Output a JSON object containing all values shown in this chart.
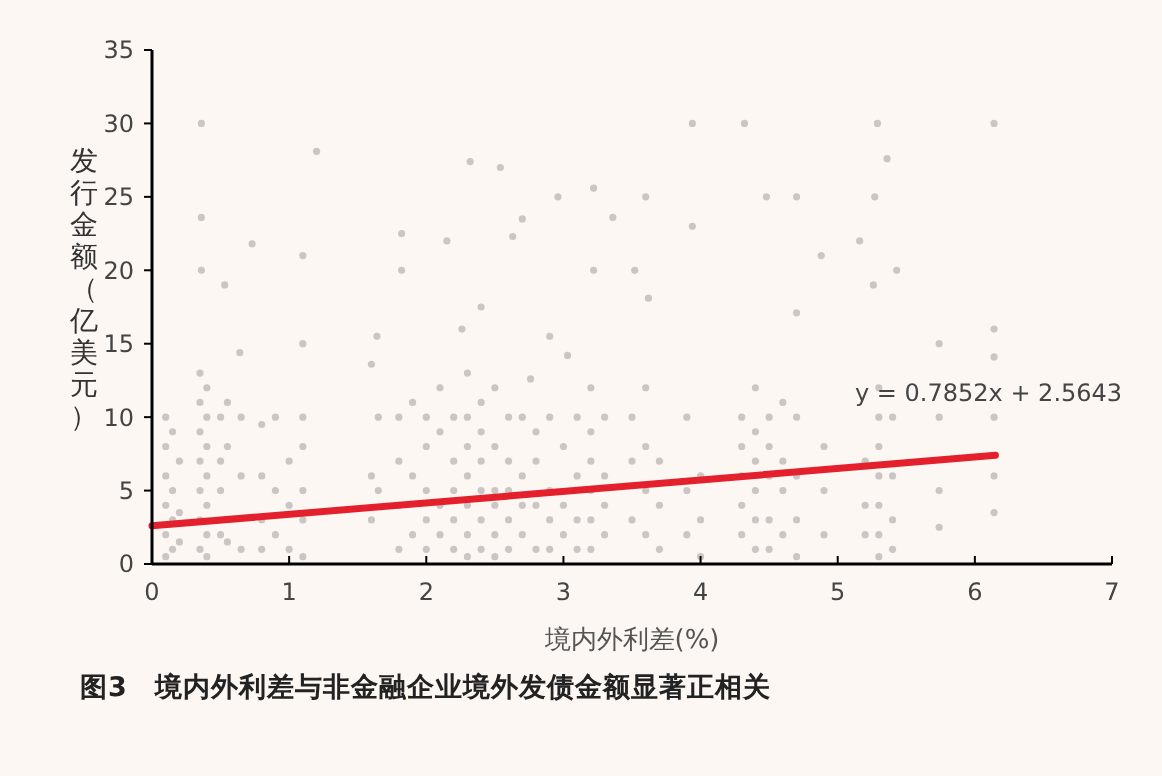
{
  "chart_data": {
    "type": "scatter",
    "title": "图3　境内外利差与非金融企业境外发债金额显著正相关",
    "xlabel": "境内外利差(%)",
    "ylabel": "发行金额（亿美元）",
    "annotations": [
      {
        "text": "y = 0.7852x + 2.5643",
        "x": 6.1,
        "y": 7.3
      }
    ],
    "xlim": [
      0,
      7
    ],
    "xticks": [
      0,
      1,
      2,
      3,
      4,
      5,
      6,
      7
    ],
    "ylim": [
      0,
      35
    ],
    "yticks": [
      0,
      5,
      10,
      15,
      20,
      25,
      30,
      35
    ],
    "grid": false,
    "series": [
      {
        "color": "#cbc5c5",
        "marker": "circle",
        "x": [
          0.36,
          1.2,
          0.36,
          0.73,
          0.36,
          0.53,
          1.1,
          1.1,
          0.64,
          1.82,
          1.82,
          2.32,
          2.54,
          2.15,
          2.7,
          2.63,
          2.96,
          3.22,
          3.36,
          3.22,
          3.52,
          2.26,
          2.4,
          1.64,
          1.6,
          2.9,
          3.03,
          2.76,
          3.94,
          4.32,
          5.29,
          6.14,
          5.36,
          3.6,
          4.48,
          4.7,
          5.27,
          3.94,
          5.16,
          4.88,
          5.43,
          5.26,
          3.62,
          4.7,
          6.14,
          5.74,
          6.14,
          6.14,
          5.74,
          6.14,
          6.14,
          5.74,
          5.74
        ],
        "values": [
          30,
          28.1,
          23.6,
          21.8,
          20,
          19,
          21,
          15,
          14.4,
          22.5,
          20,
          27.4,
          27,
          22,
          23.5,
          22.3,
          25,
          25.6,
          23.6,
          20,
          20,
          16,
          17.5,
          15.5,
          13.6,
          15.5,
          14.2,
          12.6,
          30,
          30,
          30,
          30,
          27.6,
          25,
          25,
          25,
          25,
          23,
          22,
          21,
          20,
          19,
          18.1,
          17.1,
          16,
          15,
          14.1,
          10,
          10,
          6,
          3.5,
          2.5,
          5
        ]
      },
      {
        "color": "#cbc5c5",
        "marker": "circle",
        "x": [
          0.1,
          0.1,
          0.1,
          0.1,
          0.1,
          0.1,
          0.15,
          0.15,
          0.15,
          0.15,
          0.2,
          0.2,
          0.2,
          0.35,
          0.35,
          0.35,
          0.35,
          0.35,
          0.35,
          0.35,
          0.4,
          0.4,
          0.4,
          0.4,
          0.4,
          0.4,
          0.4,
          0.5,
          0.5,
          0.5,
          0.5,
          0.55,
          0.55,
          0.55,
          0.65,
          0.65,
          0.65,
          0.8,
          0.8,
          0.8,
          0.8,
          0.9,
          0.9,
          0.9,
          1.0,
          1.0,
          1.0,
          1.1,
          1.1,
          1.1,
          1.1,
          1.1,
          1.6,
          1.6,
          1.65,
          1.65,
          1.8,
          1.8,
          1.8,
          1.8,
          1.9,
          1.9,
          1.9,
          2.0,
          2.0,
          2.0,
          2.0,
          2.0,
          2.1,
          2.1,
          2.1,
          2.1,
          2.2,
          2.2,
          2.2,
          2.2,
          2.2,
          2.3,
          2.3,
          2.3,
          2.3,
          2.3,
          2.3,
          2.3,
          2.4,
          2.4,
          2.4,
          2.4,
          2.4,
          2.4,
          2.5,
          2.5,
          2.5,
          2.5,
          2.5,
          2.5,
          2.6,
          2.6,
          2.6,
          2.6,
          2.6,
          2.7,
          2.7,
          2.7,
          2.7,
          2.8,
          2.8,
          2.8,
          2.8,
          2.9,
          2.9,
          2.9,
          2.9,
          3.0,
          3.0,
          3.0,
          3.1,
          3.1,
          3.1,
          3.1,
          3.2,
          3.2,
          3.2,
          3.2,
          3.2,
          3.2,
          3.3,
          3.3,
          3.3,
          3.3,
          3.5,
          3.5,
          3.5,
          3.6,
          3.6,
          3.6,
          3.6,
          3.7,
          3.7,
          3.7,
          3.9,
          3.9,
          3.9,
          4.0,
          4.0,
          4.0,
          4.3,
          4.3,
          4.3,
          4.3,
          4.3,
          4.4,
          4.4,
          4.4,
          4.4,
          4.4,
          4.4,
          4.5,
          4.5,
          4.5,
          4.5,
          4.5,
          4.6,
          4.6,
          4.6,
          4.6,
          4.7,
          4.7,
          4.7,
          4.7,
          4.9,
          4.9,
          4.9,
          5.2,
          5.2,
          5.2,
          5.3,
          5.3,
          5.3,
          5.3,
          5.3,
          5.3,
          5.3,
          5.4,
          5.4,
          5.4,
          5.4
        ],
        "values": [
          10,
          8,
          6,
          4,
          2,
          0.5,
          9,
          5,
          3,
          1,
          7,
          3.5,
          1.5,
          13,
          11,
          9,
          7,
          5,
          3,
          1,
          12,
          10,
          8,
          6,
          4,
          2,
          0.5,
          10,
          7,
          5,
          2,
          11,
          8,
          1.5,
          10,
          6,
          1,
          9.5,
          6,
          3,
          1,
          10,
          5,
          2,
          7,
          4,
          1,
          10,
          8,
          5,
          3,
          0.5,
          6,
          3,
          10,
          5,
          10,
          7,
          4,
          1,
          11,
          6,
          2,
          10,
          8,
          5,
          3,
          1,
          12,
          9,
          4,
          2,
          10,
          7,
          5,
          3,
          1,
          13,
          10,
          8,
          6,
          4,
          2,
          0.5,
          11,
          9,
          7,
          5,
          3,
          1,
          12,
          8,
          5,
          4,
          2,
          0.5,
          10,
          7,
          5,
          3,
          1,
          10,
          6,
          4,
          2,
          9,
          7,
          4,
          1,
          10,
          5,
          3,
          1,
          8,
          4,
          2,
          10,
          6,
          3,
          1,
          12,
          9,
          7,
          5,
          3,
          1,
          10,
          6,
          4,
          2,
          10,
          7,
          3,
          12,
          8,
          5,
          2,
          7,
          4,
          1,
          10,
          5,
          2,
          6,
          3,
          0.5,
          10,
          8,
          6,
          4,
          2,
          12,
          9,
          7,
          5,
          3,
          1,
          10,
          8,
          6,
          3,
          1,
          11,
          7,
          5,
          2,
          10,
          6,
          3,
          0.5,
          8,
          5,
          2,
          7,
          4,
          2,
          12,
          10,
          8,
          6,
          4,
          2,
          0.5,
          10,
          6,
          3,
          1
        ]
      },
      {
        "type": "line",
        "color": "#e3202c",
        "x": [
          0,
          6.15
        ],
        "values": [
          2.6,
          7.4
        ],
        "line_style": "solid",
        "marker": "none"
      }
    ]
  }
}
